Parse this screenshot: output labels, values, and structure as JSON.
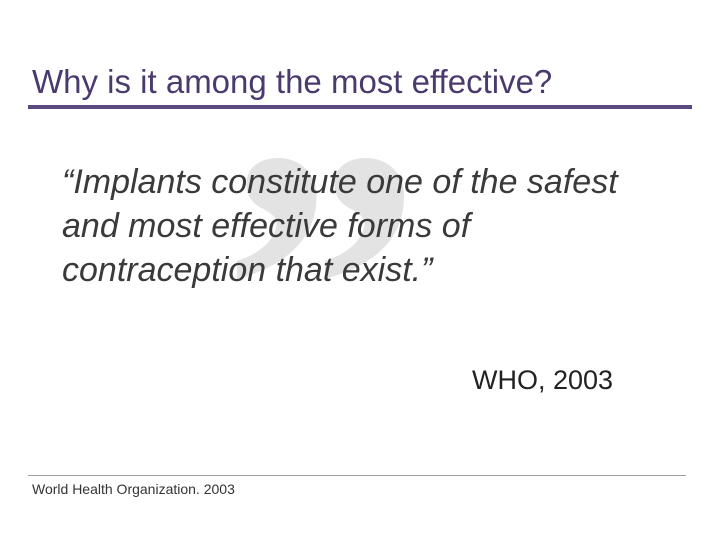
{
  "slide": {
    "title": "Why is it among the most effective?",
    "quote_glyph": "”",
    "quote": "“Implants constitute one of the safest and most effective forms of contraception that exist.”",
    "attribution": "WHO, 2003",
    "footer": "World Health Organization. 2003"
  },
  "colors": {
    "title": "#4b3a6e",
    "title_rule": "#5b4a82",
    "quote_mark": "#e3e3e3",
    "body_text": "#3a3a3a"
  },
  "icons": {
    "background_quote": "closing-quotation-mark-icon"
  }
}
